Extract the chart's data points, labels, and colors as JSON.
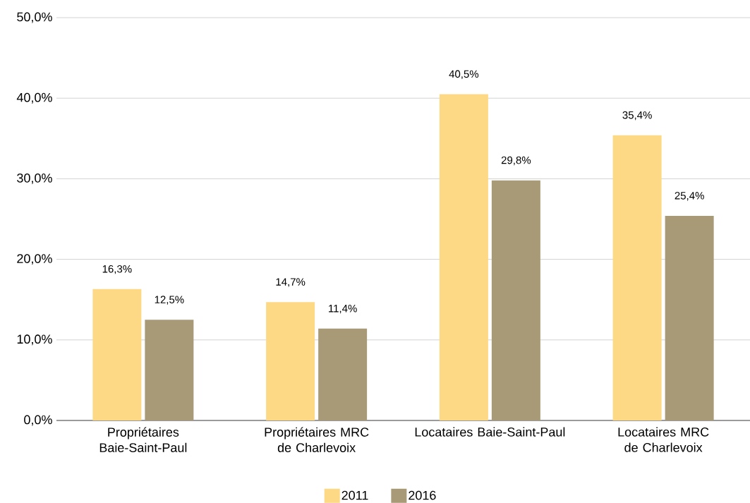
{
  "chart_data": {
    "type": "bar",
    "categories": [
      "Propriétaires Baie-Saint-Paul",
      "Propriétaires MRC de Charlevoix",
      "Locataires Baie-Saint-Paul",
      "Locataires MRC de Charlevoix"
    ],
    "series": [
      {
        "name": "2011",
        "color": "#fdd985",
        "values": [
          16.3,
          14.7,
          40.5,
          35.4
        ],
        "value_labels": [
          "16,3%",
          "14,7%",
          "40,5%",
          "35,4%"
        ]
      },
      {
        "name": "2016",
        "color": "#a89a77",
        "values": [
          12.5,
          11.4,
          29.8,
          25.4
        ],
        "value_labels": [
          "12,5%",
          "11,4%",
          "29,8%",
          "25,4%"
        ]
      }
    ],
    "ylim": [
      0,
      50
    ],
    "yticks": [
      {
        "value": 0,
        "label": "0,0%"
      },
      {
        "value": 10,
        "label": "10,0%"
      },
      {
        "value": 20,
        "label": "20,0%"
      },
      {
        "value": 30,
        "label": "30,0%"
      },
      {
        "value": 40,
        "label": "40,0%"
      },
      {
        "value": 50,
        "label": "50,0%"
      }
    ],
    "grid": "y",
    "legend": "bottom"
  }
}
